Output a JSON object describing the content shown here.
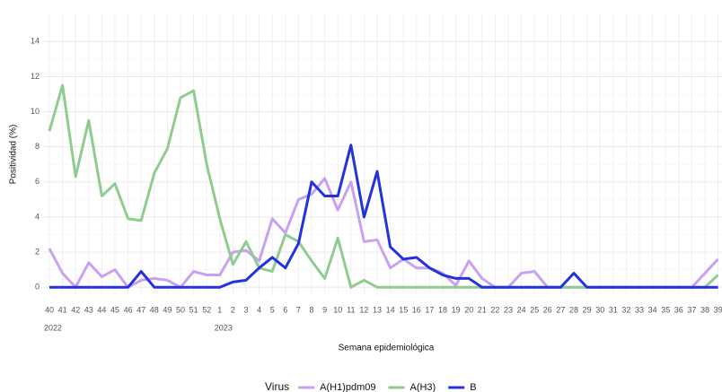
{
  "chart_data": {
    "type": "line",
    "x_label": "Semana epidemiológica",
    "y_label": "Positividad (%)",
    "legend_title": "Virus",
    "legend_position": "bottom",
    "grid": true,
    "categories": [
      "40",
      "41",
      "42",
      "43",
      "44",
      "45",
      "46",
      "47",
      "48",
      "49",
      "50",
      "51",
      "52",
      "1",
      "2",
      "3",
      "4",
      "5",
      "6",
      "7",
      "8",
      "9",
      "10",
      "11",
      "12",
      "13",
      "14",
      "15",
      "16",
      "17",
      "18",
      "19",
      "20",
      "21",
      "22",
      "23",
      "24",
      "25",
      "26",
      "27",
      "28",
      "29",
      "30",
      "31",
      "32",
      "33",
      "34",
      "35",
      "36",
      "37",
      "38",
      "39"
    ],
    "year_labels": [
      "2022",
      null,
      null,
      null,
      null,
      null,
      null,
      null,
      null,
      null,
      null,
      null,
      null,
      "2023",
      null,
      null,
      null,
      null,
      null,
      null,
      null,
      null,
      null,
      null,
      null,
      null,
      null,
      null,
      null,
      null,
      null,
      null,
      null,
      null,
      null,
      null,
      null,
      null,
      null,
      null,
      null,
      null,
      null,
      null,
      null,
      null,
      null,
      null,
      null,
      null,
      null,
      null
    ],
    "ylim": [
      -0.5,
      15.6
    ],
    "yticks": [
      0,
      2,
      4,
      6,
      8,
      10,
      12,
      14
    ],
    "series": [
      {
        "name": "A(H1)pdm09",
        "color": "#c9a0f2",
        "values": [
          2.2,
          0.8,
          0,
          1.4,
          0.6,
          1.0,
          0,
          0.4,
          0.5,
          0.4,
          0,
          0.9,
          0.7,
          0.7,
          2.0,
          2.1,
          1.5,
          3.9,
          3.1,
          5.0,
          5.3,
          6.2,
          4.4,
          6.0,
          2.6,
          2.7,
          1.1,
          1.6,
          1.1,
          1.1,
          0.8,
          0.1,
          1.5,
          0.5,
          0,
          0,
          0.8,
          0.9,
          0,
          0,
          0,
          0,
          0,
          0,
          0,
          0,
          0,
          0,
          0,
          0,
          0.8,
          1.6
        ]
      },
      {
        "name": "A(H3)",
        "color": "#8fcc8f",
        "values": [
          8.9,
          11.5,
          6.3,
          9.5,
          5.2,
          5.9,
          3.9,
          3.8,
          6.5,
          7.9,
          10.8,
          11.2,
          7.0,
          3.9,
          1.3,
          2.6,
          1.1,
          0.9,
          3.0,
          2.6,
          1.5,
          0.5,
          2.8,
          0,
          0.4,
          0,
          0,
          0,
          0,
          0,
          0,
          0,
          0,
          0,
          0,
          0,
          0,
          0,
          0,
          0,
          0,
          0,
          0,
          0,
          0,
          0,
          0,
          0,
          0,
          0,
          0,
          0.7
        ]
      },
      {
        "name": "B",
        "color": "#2233dd",
        "values": [
          0,
          0,
          0,
          0,
          0,
          0,
          0,
          0.9,
          0,
          0,
          0,
          0,
          0,
          0,
          0.3,
          0.4,
          1.1,
          1.7,
          1.1,
          2.5,
          6.0,
          5.2,
          5.2,
          8.1,
          4.0,
          6.6,
          2.3,
          1.6,
          1.7,
          1.1,
          0.7,
          0.5,
          0.5,
          0,
          0,
          0,
          0,
          0,
          0,
          0,
          0.8,
          0,
          0,
          0,
          0,
          0,
          0,
          0,
          0,
          0,
          0,
          0
        ]
      }
    ]
  }
}
